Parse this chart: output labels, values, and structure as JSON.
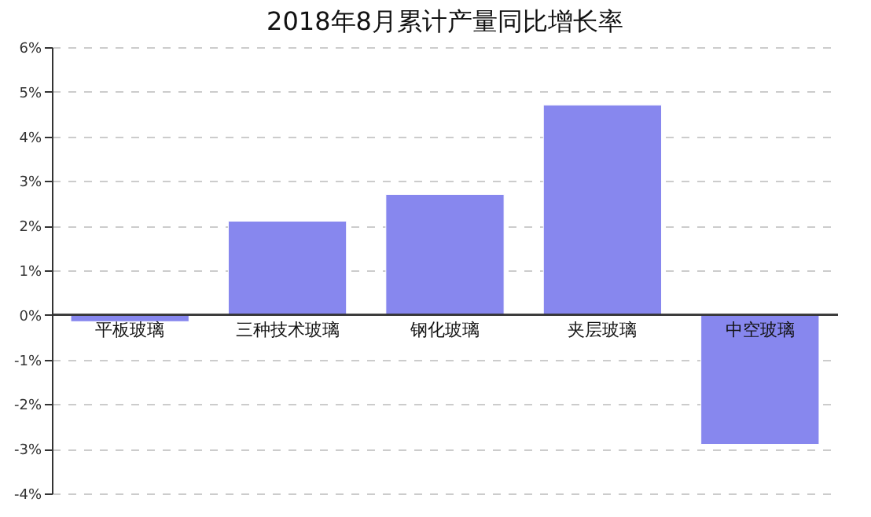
{
  "chart_data": {
    "type": "bar",
    "title": "2018年8月累计产量同比增长率",
    "categories": [
      "平板玻璃",
      "三种技术玻璃",
      "钢化玻璃",
      "夹层玻璃",
      "中空玻璃"
    ],
    "values": [
      -0.15,
      2.1,
      2.7,
      4.7,
      -2.9
    ],
    "color": "#8787ee",
    "ylim": [
      -4,
      6
    ],
    "yticks": [
      {
        "value": -4,
        "label": "-4%"
      },
      {
        "value": -3,
        "label": "-3%"
      },
      {
        "value": -2,
        "label": "-2%"
      },
      {
        "value": -1,
        "label": "-1%"
      },
      {
        "value": 0,
        "label": "0%"
      },
      {
        "value": 1,
        "label": "1%"
      },
      {
        "value": 2,
        "label": "2%"
      },
      {
        "value": 3,
        "label": "3%"
      },
      {
        "value": 4,
        "label": "4%"
      },
      {
        "value": 5,
        "label": "5%"
      },
      {
        "value": 6,
        "label": "6%"
      }
    ],
    "grid": "y"
  }
}
